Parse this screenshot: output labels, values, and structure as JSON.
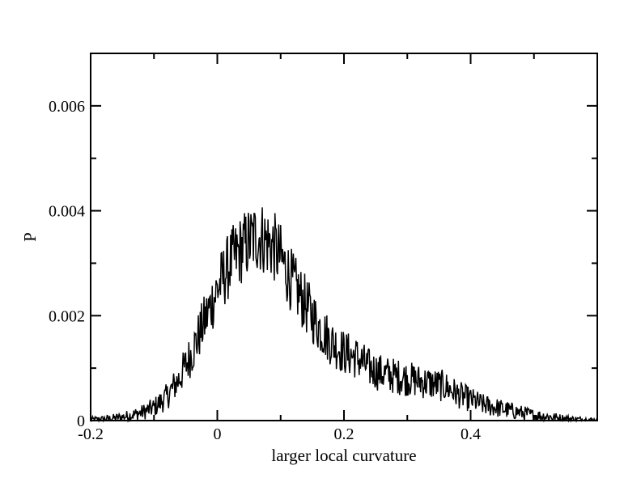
{
  "chart_data": {
    "type": "line",
    "title": "",
    "xlabel": "larger local curvature",
    "ylabel": "P",
    "xlim": [
      -0.2,
      0.6
    ],
    "ylim": [
      0,
      0.007
    ],
    "x_major_ticks": [
      -0.2,
      0,
      0.2,
      0.4
    ],
    "x_tick_labels": [
      "-0.2",
      "0",
      "0.2",
      "0.4"
    ],
    "y_major_ticks": [
      0,
      0.002,
      0.004,
      0.006
    ],
    "y_tick_labels": [
      "0",
      "0.002",
      "0.004",
      "0.006"
    ],
    "grid": false,
    "legend": "none",
    "line_color": "#000000",
    "series": [
      {
        "x": [
          -0.2,
          -0.18,
          -0.16,
          -0.14,
          -0.12,
          -0.1,
          -0.08,
          -0.06,
          -0.04,
          -0.02,
          0.0,
          0.02,
          0.04,
          0.05,
          0.06,
          0.07,
          0.08,
          0.09,
          0.1,
          0.12,
          0.14,
          0.16,
          0.18,
          0.2,
          0.22,
          0.24,
          0.26,
          0.28,
          0.3,
          0.32,
          0.34,
          0.36,
          0.38,
          0.4,
          0.42,
          0.44,
          0.46,
          0.48,
          0.5,
          0.52,
          0.54,
          0.56,
          0.58,
          0.6
        ],
        "y": [
          2e-05,
          3e-05,
          5e-05,
          9e-05,
          0.00015,
          0.00025,
          0.00045,
          0.0008,
          0.0013,
          0.0019,
          0.0025,
          0.003,
          0.0033,
          0.0034,
          0.0035,
          0.0035,
          0.0034,
          0.0033,
          0.0031,
          0.0026,
          0.0022,
          0.0018,
          0.0015,
          0.0013,
          0.0012,
          0.001,
          0.0009,
          0.00085,
          0.0008,
          0.00075,
          0.0007,
          0.00065,
          0.0005,
          0.0004,
          0.0003,
          0.00025,
          0.0002,
          0.00015,
          0.0001,
          8e-05,
          5e-05,
          3e-05,
          2e-05,
          1e-05
        ]
      }
    ]
  }
}
